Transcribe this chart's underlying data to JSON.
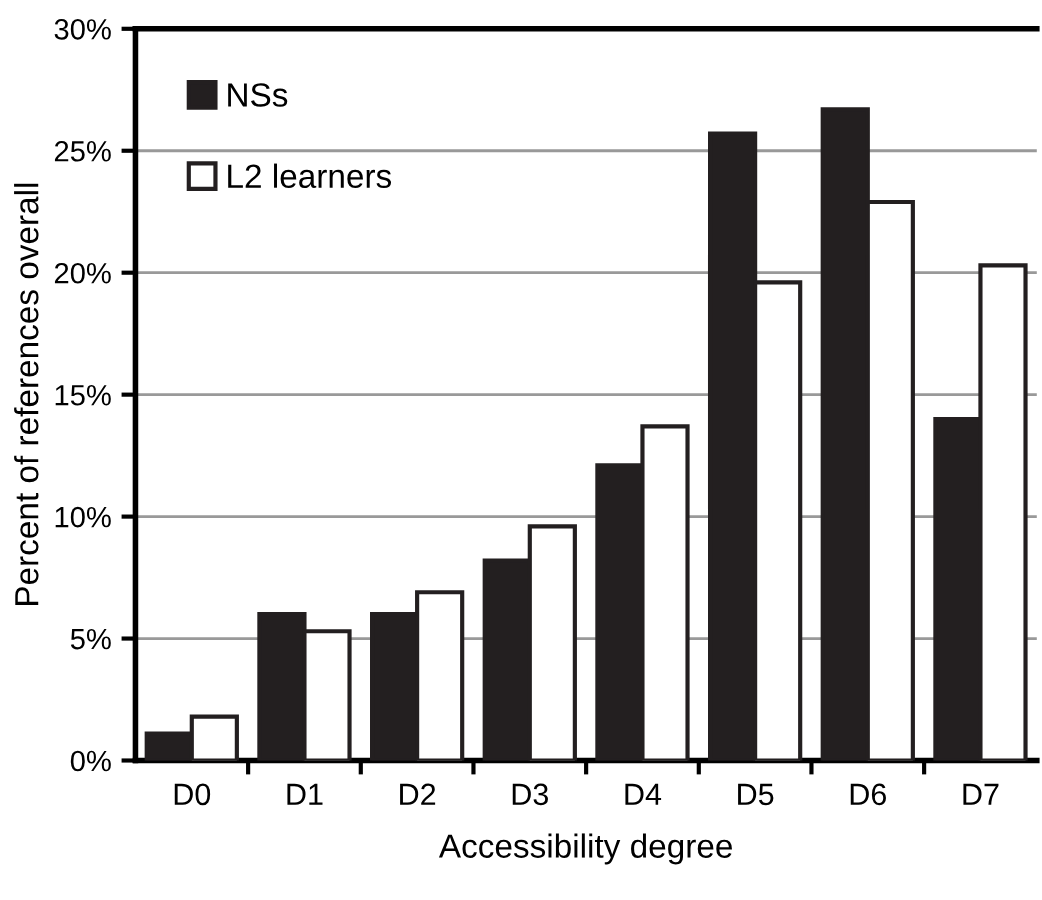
{
  "chart_data": {
    "type": "bar",
    "xlabel": "Accessibility degree",
    "ylabel": "Percent of references overall",
    "categories": [
      "D0",
      "D1",
      "D2",
      "D3",
      "D4",
      "D5",
      "D6",
      "D7"
    ],
    "series": [
      {
        "name": "NSs",
        "color": "#231f20",
        "values": [
          1.1,
          6.0,
          6.0,
          8.2,
          12.1,
          25.7,
          26.7,
          14.0
        ]
      },
      {
        "name": "L2 learners",
        "color": "#ffffff",
        "values": [
          1.8,
          5.3,
          6.9,
          9.6,
          13.7,
          19.6,
          22.9,
          20.3
        ]
      }
    ],
    "ylim": [
      0,
      30
    ],
    "yticks": [
      {
        "value": 0,
        "label": "0%"
      },
      {
        "value": 5,
        "label": "5%"
      },
      {
        "value": 10,
        "label": "10%"
      },
      {
        "value": 15,
        "label": "15%"
      },
      {
        "value": 20,
        "label": "20%"
      },
      {
        "value": 25,
        "label": "25%"
      },
      {
        "value": 30,
        "label": "30%"
      }
    ],
    "grid": "y",
    "legend": "top left"
  }
}
